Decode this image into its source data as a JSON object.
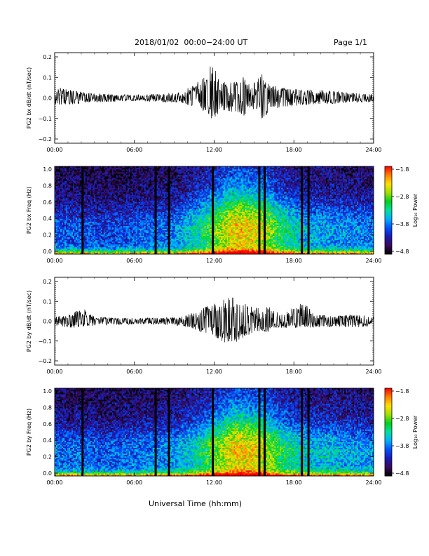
{
  "header": {
    "title": "2018/01/02  00:00−24:00 UT",
    "page": "Page 1/1"
  },
  "colors": {
    "colormap": [
      "#000000",
      "#3a0a5a",
      "#1a1ab4",
      "#0050ff",
      "#00b0ff",
      "#00e0a0",
      "#00d020",
      "#a0e000",
      "#ffe000",
      "#ff8000",
      "#ff0000"
    ],
    "trace": "#000000"
  },
  "chart_data": [
    {
      "type": "line",
      "ylabel": "PG2 bx dB/dt (nT/sec)",
      "xlim": [
        0,
        24
      ],
      "ylim": [
        -0.2,
        0.2
      ],
      "yticks": [
        "0.2",
        "0.1",
        "0.0",
        "−0.1",
        "−0.2"
      ],
      "xticks": [
        "00:00",
        "06:00",
        "12:00",
        "18:00",
        "24:00"
      ],
      "envelope": [
        {
          "x": 0,
          "max": 0.03,
          "min": -0.03
        },
        {
          "x": 0.5,
          "max": 0.05,
          "min": -0.03
        },
        {
          "x": 1.5,
          "max": 0.03,
          "min": -0.03
        },
        {
          "x": 3,
          "max": 0.02,
          "min": -0.02
        },
        {
          "x": 5,
          "max": 0.015,
          "min": -0.015
        },
        {
          "x": 7,
          "max": 0.015,
          "min": -0.015
        },
        {
          "x": 8.5,
          "max": 0.02,
          "min": -0.02
        },
        {
          "x": 9.5,
          "max": 0.025,
          "min": -0.02
        },
        {
          "x": 10.5,
          "max": 0.06,
          "min": -0.04
        },
        {
          "x": 11.5,
          "max": 0.1,
          "min": -0.07
        },
        {
          "x": 11.8,
          "max": 0.16,
          "min": -0.1
        },
        {
          "x": 12.5,
          "max": 0.07,
          "min": -0.06
        },
        {
          "x": 13.5,
          "max": 0.07,
          "min": -0.06
        },
        {
          "x": 14.3,
          "max": 0.1,
          "min": -0.08
        },
        {
          "x": 14.8,
          "max": 0.05,
          "min": -0.04
        },
        {
          "x": 15.7,
          "max": 0.12,
          "min": -0.1
        },
        {
          "x": 16.2,
          "max": 0.06,
          "min": -0.05
        },
        {
          "x": 17.5,
          "max": 0.04,
          "min": -0.04
        },
        {
          "x": 19,
          "max": 0.04,
          "min": -0.03
        },
        {
          "x": 20.5,
          "max": 0.035,
          "min": -0.03
        },
        {
          "x": 22,
          "max": 0.025,
          "min": -0.02
        },
        {
          "x": 24,
          "max": 0.02,
          "min": -0.02
        }
      ]
    },
    {
      "type": "heatmap",
      "ylabel": "PG2 bx Freq (Hz)",
      "colorbar_label": "Log₁₀ Power",
      "xlim": [
        0,
        24
      ],
      "ylim": [
        0,
        1.0
      ],
      "yticks": [
        "1.0",
        "0.8",
        "0.6",
        "0.4",
        "0.2",
        "0.0"
      ],
      "xticks": [
        "00:00",
        "06:00",
        "12:00",
        "18:00",
        "24:00"
      ],
      "clim": [
        -4.8,
        -1.8
      ],
      "colorbar_ticks": [
        "−1.8",
        "−2.8",
        "−3.8",
        "−4.8"
      ],
      "gaps": [
        2.1,
        7.6,
        8.6,
        11.9,
        15.4,
        15.8,
        18.6,
        19.1
      ],
      "activity": [
        {
          "x": 0,
          "level": 0.2
        },
        {
          "x": 4,
          "level": 0.15
        },
        {
          "x": 9,
          "level": 0.25
        },
        {
          "x": 11,
          "level": 0.5
        },
        {
          "x": 13.5,
          "level": 0.85
        },
        {
          "x": 15.5,
          "level": 0.8
        },
        {
          "x": 17,
          "level": 0.55
        },
        {
          "x": 19,
          "level": 0.35
        },
        {
          "x": 24,
          "level": 0.25
        }
      ]
    },
    {
      "type": "line",
      "ylabel": "PG2 by dB/dt (nT/sec)",
      "xlim": [
        0,
        24
      ],
      "ylim": [
        -0.2,
        0.2
      ],
      "yticks": [
        "0.2",
        "0.1",
        "0.0",
        "−0.1",
        "−0.2"
      ],
      "xticks": [
        "00:00",
        "06:00",
        "12:00",
        "18:00",
        "24:00"
      ],
      "envelope": [
        {
          "x": 0,
          "max": 0.02,
          "min": -0.02
        },
        {
          "x": 1,
          "max": 0.03,
          "min": -0.03
        },
        {
          "x": 2.2,
          "max": 0.06,
          "min": -0.03
        },
        {
          "x": 3,
          "max": 0.02,
          "min": -0.02
        },
        {
          "x": 5,
          "max": 0.015,
          "min": -0.015
        },
        {
          "x": 8,
          "max": 0.015,
          "min": -0.015
        },
        {
          "x": 9.5,
          "max": 0.02,
          "min": -0.02
        },
        {
          "x": 10.5,
          "max": 0.04,
          "min": -0.04
        },
        {
          "x": 11.5,
          "max": 0.07,
          "min": -0.06
        },
        {
          "x": 12.5,
          "max": 0.09,
          "min": -0.09
        },
        {
          "x": 13.3,
          "max": 0.12,
          "min": -0.11
        },
        {
          "x": 14,
          "max": 0.09,
          "min": -0.08
        },
        {
          "x": 15,
          "max": 0.06,
          "min": -0.05
        },
        {
          "x": 16,
          "max": 0.07,
          "min": -0.05
        },
        {
          "x": 17,
          "max": 0.03,
          "min": -0.03
        },
        {
          "x": 18.8,
          "max": 0.09,
          "min": -0.03
        },
        {
          "x": 19.5,
          "max": 0.03,
          "min": -0.03
        },
        {
          "x": 21,
          "max": 0.025,
          "min": -0.025
        },
        {
          "x": 23,
          "max": 0.03,
          "min": -0.03
        },
        {
          "x": 24,
          "max": 0.02,
          "min": -0.02
        }
      ]
    },
    {
      "type": "heatmap",
      "ylabel": "PG2 by Freq (Hz)",
      "colorbar_label": "Log₁₀ Power",
      "xlim": [
        0,
        24
      ],
      "ylim": [
        0,
        1.0
      ],
      "yticks": [
        "1.0",
        "0.8",
        "0.6",
        "0.4",
        "0.2",
        "0.0"
      ],
      "xticks": [
        "00:00",
        "06:00",
        "12:00",
        "18:00",
        "24:00"
      ],
      "clim": [
        -4.8,
        -1.8
      ],
      "colorbar_ticks": [
        "−1.8",
        "−2.8",
        "−3.8",
        "−4.8"
      ],
      "gaps": [
        2.1,
        7.6,
        8.6,
        11.9,
        15.4,
        15.8,
        18.6,
        19.1
      ],
      "activity": [
        {
          "x": 0,
          "level": 0.25
        },
        {
          "x": 4,
          "level": 0.2
        },
        {
          "x": 9,
          "level": 0.3
        },
        {
          "x": 11,
          "level": 0.5
        },
        {
          "x": 13.5,
          "level": 0.85
        },
        {
          "x": 15.5,
          "level": 0.8
        },
        {
          "x": 17,
          "level": 0.55
        },
        {
          "x": 19,
          "level": 0.4
        },
        {
          "x": 24,
          "level": 0.3
        }
      ]
    }
  ],
  "xlabel": "Universal Time (hh:mm)"
}
